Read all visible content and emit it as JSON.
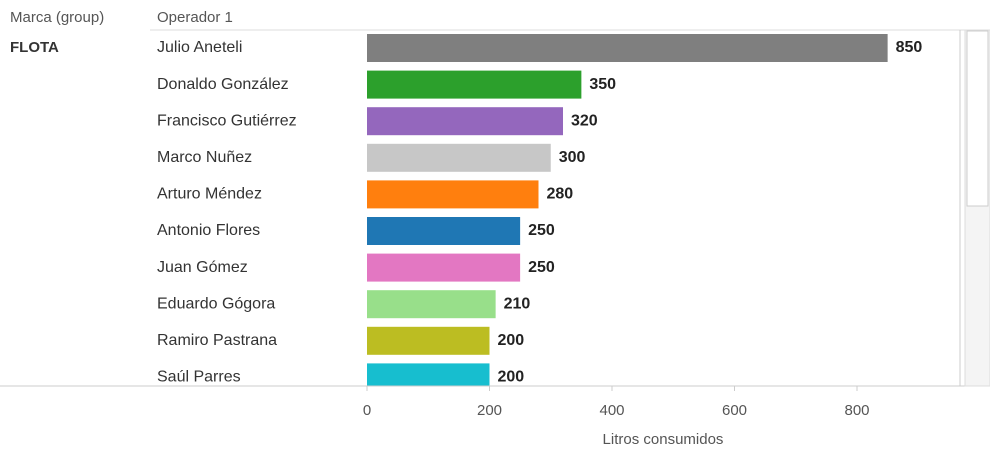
{
  "chart_data": {
    "type": "bar",
    "orientation": "horizontal",
    "row_header": "Marca (group)",
    "category_header": "Operador 1",
    "group": "FLOTA",
    "x_label": "Litros consumidos",
    "categories": [
      "Julio Aneteli",
      "Donaldo González",
      "Francisco Gutiérrez",
      "Marco Nuñez",
      "Arturo Méndez",
      "Antonio Flores",
      "Juan Gómez",
      "Eduardo Gógora",
      "Ramiro Pastrana",
      "Saúl Parres"
    ],
    "values": [
      850,
      350,
      320,
      300,
      280,
      250,
      250,
      210,
      200,
      200
    ],
    "colors": [
      "#7f7f7f",
      "#2ca02c",
      "#9467bd",
      "#c7c7c7",
      "#ff7f0e",
      "#1f77b4",
      "#e377c2",
      "#98df8a",
      "#bcbd22",
      "#17becf"
    ],
    "xlim": [
      0,
      960
    ],
    "xticks": [
      0,
      200,
      400,
      600,
      800
    ]
  }
}
